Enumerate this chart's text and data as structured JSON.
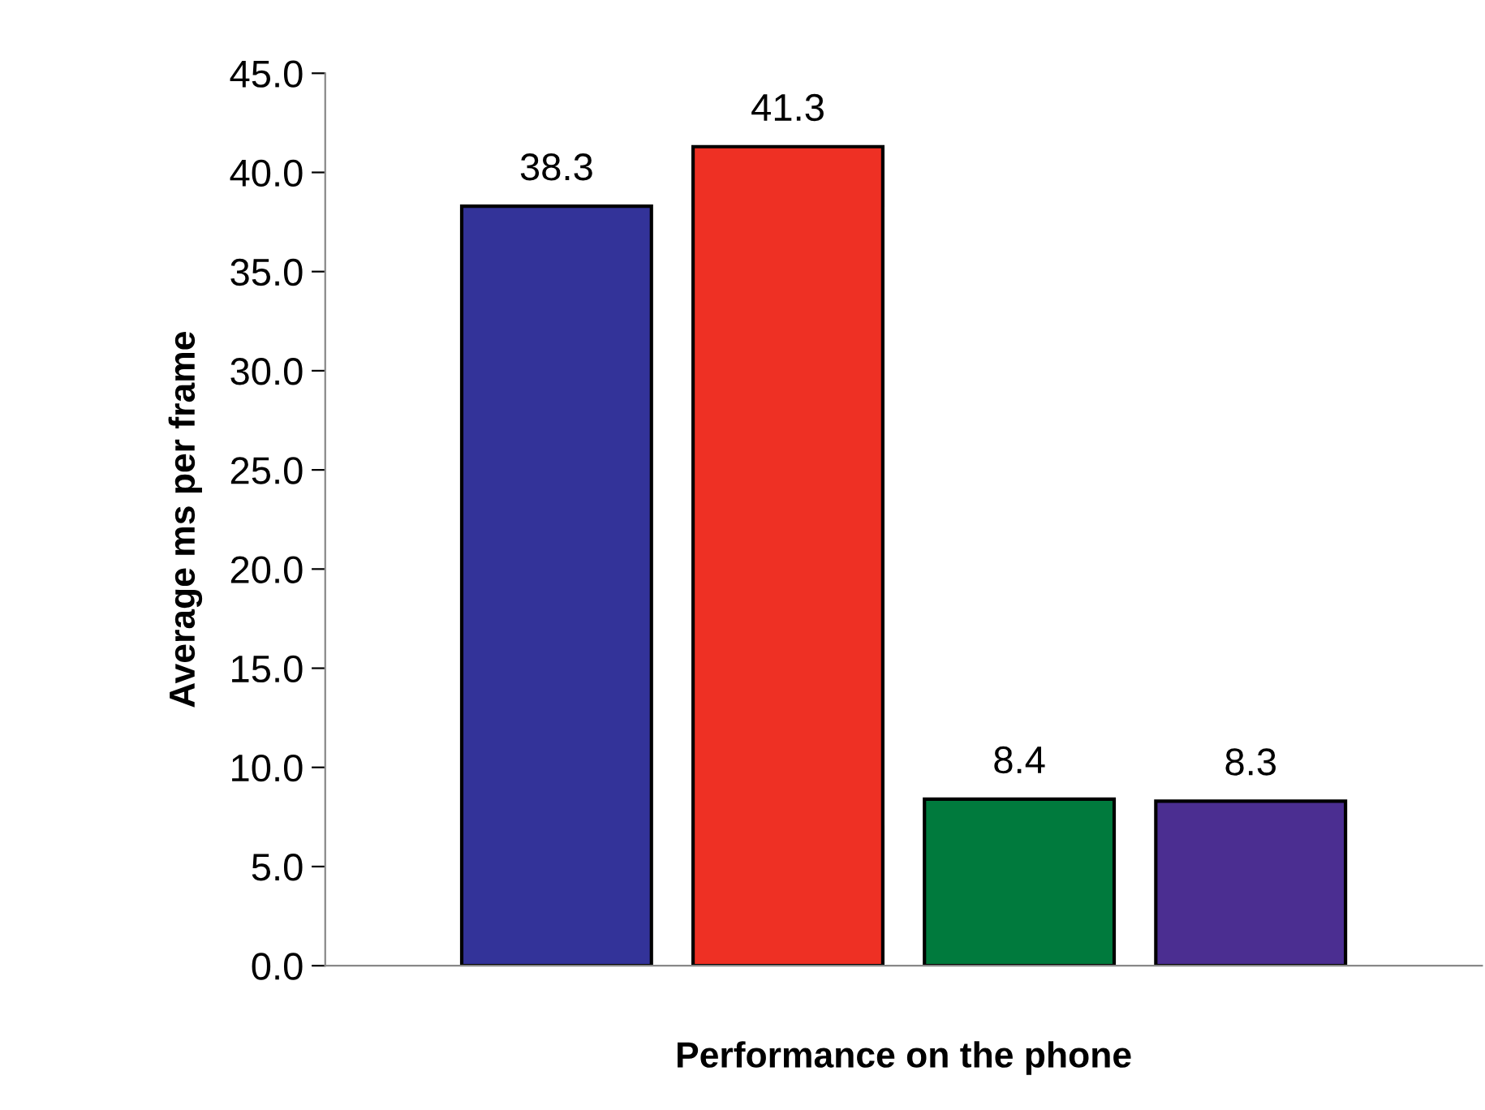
{
  "chart_data": {
    "type": "bar",
    "xlabel": "Performance on the phone",
    "ylabel": "Average ms per frame",
    "categories": [
      null,
      null,
      null,
      null
    ],
    "values": [
      38.3,
      41.3,
      8.4,
      8.3
    ],
    "colors": [
      "#333399",
      "#ee3024",
      "#007a3d",
      "#4b2e91"
    ],
    "ylim": [
      0,
      45
    ],
    "yticks": [
      {
        "value": 0,
        "label": "0.0"
      },
      {
        "value": 5,
        "label": "5.0"
      },
      {
        "value": 10,
        "label": "10.0"
      },
      {
        "value": 15,
        "label": "15.0"
      },
      {
        "value": 20,
        "label": "20.0"
      },
      {
        "value": 25,
        "label": "25.0"
      },
      {
        "value": 30,
        "label": "30.0"
      },
      {
        "value": 35,
        "label": "35.0"
      },
      {
        "value": 40,
        "label": "40.0"
      },
      {
        "value": 45,
        "label": "45.0"
      }
    ],
    "data_labels": true,
    "grid": false,
    "legend": false
  }
}
